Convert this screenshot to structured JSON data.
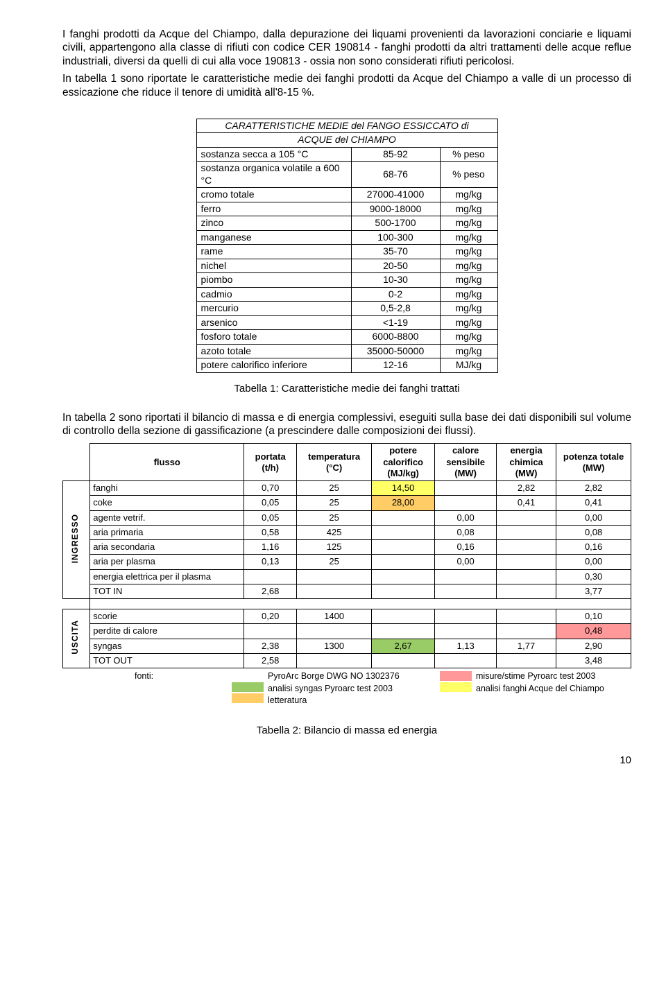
{
  "para1": "I fanghi prodotti da Acque del Chiampo, dalla depurazione dei liquami provenienti da lavorazioni conciarie e liquami civili, appartengono alla classe di rifiuti con codice CER 190814 - fanghi prodotti da altri trattamenti delle acque reflue industriali, diversi da quelli di cui alla voce 190813 - ossia non sono considerati rifiuti pericolosi.",
  "para2": "In tabella 1 sono riportate le caratteristiche medie dei fanghi prodotti da Acque del Chiampo a valle di un processo di essicazione che riduce il tenore di umidità all'8-15 %.",
  "table1": {
    "title1": "CARATTERISTICHE MEDIE del FANGO ESSICCATO di",
    "title2": "ACQUE del CHIAMPO",
    "rows": [
      {
        "label": "sostanza secca a 105 °C",
        "val": "85-92",
        "unit": "% peso"
      },
      {
        "label": "sostanza organica volatile a 600 °C",
        "val": "68-76",
        "unit": "% peso"
      },
      {
        "label": "cromo totale",
        "val": "27000-41000",
        "unit": "mg/kg"
      },
      {
        "label": "ferro",
        "val": "9000-18000",
        "unit": "mg/kg"
      },
      {
        "label": "zinco",
        "val": "500-1700",
        "unit": "mg/kg"
      },
      {
        "label": "manganese",
        "val": "100-300",
        "unit": "mg/kg"
      },
      {
        "label": "rame",
        "val": "35-70",
        "unit": "mg/kg"
      },
      {
        "label": "nichel",
        "val": "20-50",
        "unit": "mg/kg"
      },
      {
        "label": "piombo",
        "val": "10-30",
        "unit": "mg/kg"
      },
      {
        "label": "cadmio",
        "val": "0-2",
        "unit": "mg/kg"
      },
      {
        "label": "mercurio",
        "val": "0,5-2,8",
        "unit": "mg/kg"
      },
      {
        "label": "arsenico",
        "val": "<1-19",
        "unit": "mg/kg"
      },
      {
        "label": "fosforo totale",
        "val": "6000-8800",
        "unit": "mg/kg"
      },
      {
        "label": "azoto totale",
        "val": "35000-50000",
        "unit": "mg/kg"
      },
      {
        "label": "potere calorifico inferiore",
        "val": "12-16",
        "unit": "MJ/kg"
      }
    ]
  },
  "caption1": "Tabella 1: Caratteristiche medie dei fanghi trattati",
  "para3": "In tabella 2 sono riportati il bilancio di massa e di energia complessivi, eseguiti sulla base dei dati disponibili sul volume di controllo della sezione di gassificazione (a prescindere dalle composizioni dei flussi).",
  "table2": {
    "headers": {
      "flusso": "flusso",
      "portata": "portata (t/h)",
      "temperatura": "temperatura (°C)",
      "potere": "potere calorifico (MJ/kg)",
      "calore": "calore sensibile (MW)",
      "energia": "energia chimica (MW)",
      "potenza": "potenza totale (MW)"
    },
    "side_in": "INGRESSO",
    "side_out": "USCITA",
    "in_rows": [
      {
        "f": "fanghi",
        "p": "0,70",
        "t": "25",
        "pc": "14,50",
        "pc_bg": "#ffff66",
        "cs": "",
        "ec": "2,82",
        "pt": "2,82"
      },
      {
        "f": "coke",
        "p": "0,05",
        "t": "25",
        "pc": "28,00",
        "pc_bg": "#ffcc66",
        "cs": "",
        "ec": "0,41",
        "pt": "0,41"
      },
      {
        "f": "agente vetrif.",
        "p": "0,05",
        "t": "25",
        "pc": "",
        "pc_bg": "",
        "cs": "0,00",
        "ec": "",
        "pt": "0,00"
      },
      {
        "f": "aria primaria",
        "p": "0,58",
        "t": "425",
        "pc": "",
        "pc_bg": "",
        "cs": "0,08",
        "ec": "",
        "pt": "0,08"
      },
      {
        "f": "aria secondaria",
        "p": "1,16",
        "t": "125",
        "pc": "",
        "pc_bg": "",
        "cs": "0,16",
        "ec": "",
        "pt": "0,16"
      },
      {
        "f": "aria per plasma",
        "p": "0,13",
        "t": "25",
        "pc": "",
        "pc_bg": "",
        "cs": "0,00",
        "ec": "",
        "pt": "0,00"
      },
      {
        "f": "energia elettrica per il plasma",
        "p": "",
        "t": "",
        "pc": "",
        "pc_bg": "",
        "cs": "",
        "ec": "",
        "pt": "0,30"
      }
    ],
    "tot_in": {
      "f": "TOT IN",
      "p": "2,68",
      "pt": "3,77"
    },
    "out_rows": [
      {
        "f": "scorie",
        "p": "0,20",
        "t": "1400",
        "pc": "",
        "pc_bg": "",
        "cs": "",
        "ec": "",
        "pt": "0,10",
        "pt_bg": ""
      },
      {
        "f": "perdite di calore",
        "p": "",
        "t": "",
        "pc": "",
        "pc_bg": "",
        "cs": "",
        "ec": "",
        "pt": "0,48",
        "pt_bg": "#ff9999"
      },
      {
        "f": "syngas",
        "p": "2,38",
        "t": "1300",
        "pc": "2,67",
        "pc_bg": "#99cc66",
        "cs": "1,13",
        "ec": "1,77",
        "pt": "2,90",
        "pt_bg": ""
      }
    ],
    "tot_out": {
      "f": "TOT OUT",
      "p": "2,58",
      "pt": "3,48"
    }
  },
  "fonti": {
    "label": "fonti:",
    "left": [
      {
        "color": "",
        "text": "PyroArc Borge DWG NO 1302376"
      },
      {
        "color": "#99cc66",
        "text": "analisi syngas Pyroarc test 2003"
      },
      {
        "color": "#ffcc66",
        "text": "letteratura"
      }
    ],
    "right": [
      {
        "color": "#ff9999",
        "text": "misure/stime Pyroarc test 2003"
      },
      {
        "color": "#ffff66",
        "text": "analisi fanghi Acque del Chiampo"
      }
    ]
  },
  "caption2": "Tabella 2: Bilancio di massa ed energia",
  "pagenum": "10"
}
